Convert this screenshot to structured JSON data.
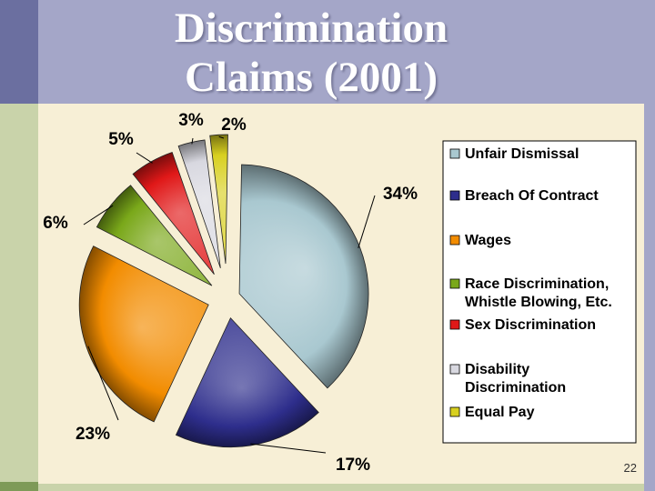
{
  "slide": {
    "title_line1": "Discrimination",
    "title_line2": "Claims (2001)",
    "page_number": "22"
  },
  "chart_data": {
    "type": "pie",
    "title": "Discrimination Claims (2001)",
    "legend_position": "right",
    "slices": [
      {
        "name": "Unfair Dismissal",
        "legend": [
          "Unfair Dismissal"
        ],
        "value": 34,
        "label": "34%",
        "color": "#a9c8d0"
      },
      {
        "name": "Breach Of Contract",
        "legend": [
          "Breach Of Contract"
        ],
        "value": 17,
        "label": "17%",
        "color": "#2e2e8c"
      },
      {
        "name": "Wages",
        "legend": [
          "Wages"
        ],
        "value": 23,
        "label": "23%",
        "color": "#f28c00"
      },
      {
        "name": "Race Discrimination, Whistle Blowing, Etc.",
        "legend": [
          "Race Discrimination,",
          "Whistle Blowing, Etc."
        ],
        "value": 6,
        "label": "6%",
        "color": "#7aa81a"
      },
      {
        "name": "Sex Discrimination",
        "legend": [
          "Sex Discrimination"
        ],
        "value": 5,
        "label": "5%",
        "color": "#e01818"
      },
      {
        "name": "Disability Discrimination",
        "legend": [
          "Disability",
          "Discrimination"
        ],
        "value": 3,
        "label": "3%",
        "color": "#d8d8e0"
      },
      {
        "name": "Equal Pay",
        "legend": [
          "Equal Pay"
        ],
        "value": 2,
        "label": "2%",
        "color": "#d8d020"
      }
    ]
  }
}
